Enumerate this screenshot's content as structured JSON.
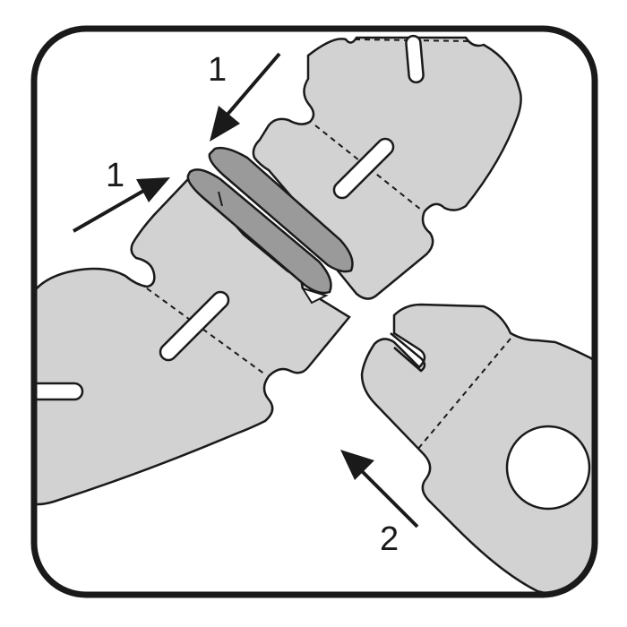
{
  "colors": {
    "frame_stroke": "#1a1a1a",
    "panel_fill": "#d2d2d2",
    "adhesive_fill": "#9a9a9a",
    "slot_fill": "#ffffff",
    "arrow": "#1a1a1a"
  },
  "steps": {
    "press_top": "1",
    "press_left": "1",
    "join": "2"
  }
}
